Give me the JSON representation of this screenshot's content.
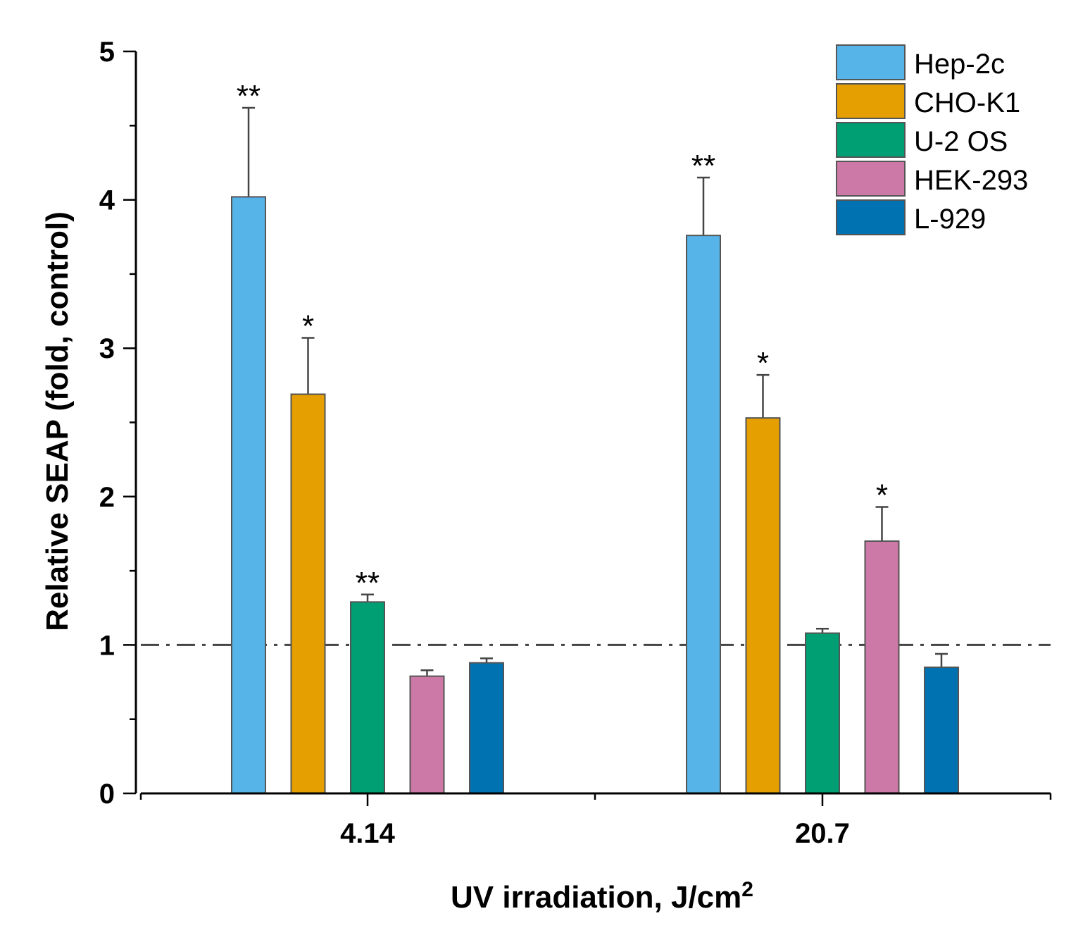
{
  "chart_data": {
    "type": "bar",
    "title": "",
    "xlabel": "UV irradiation, J/cm",
    "xlabel_superscript": "2",
    "ylabel": "Relative SEAP (fold, control)",
    "ylim": [
      0,
      5
    ],
    "yticks": [
      "0",
      "1",
      "2",
      "3",
      "4",
      "5"
    ],
    "categories": [
      "4.14",
      "20.7"
    ],
    "reference_line": 1,
    "legend_position": "top-right",
    "series": [
      {
        "name": "Hep-2c",
        "color": "#56B4E9",
        "values": [
          4.02,
          3.76
        ],
        "errors": [
          0.6,
          0.39
        ],
        "significance": [
          "**",
          "**"
        ]
      },
      {
        "name": "CHO-K1",
        "color": "#E69F00",
        "values": [
          2.69,
          2.53
        ],
        "errors": [
          0.38,
          0.29
        ],
        "significance": [
          "*",
          "*"
        ]
      },
      {
        "name": "U-2 OS",
        "color": "#009E73",
        "values": [
          1.29,
          1.08
        ],
        "errors": [
          0.05,
          0.03
        ],
        "significance": [
          "**",
          ""
        ]
      },
      {
        "name": "HEK-293",
        "color": "#CC79A7",
        "values": [
          0.79,
          1.7
        ],
        "errors": [
          0.04,
          0.23
        ],
        "significance": [
          "",
          "*"
        ]
      },
      {
        "name": "L-929",
        "color": "#0072B2",
        "values": [
          0.88,
          0.85
        ],
        "errors": [
          0.03,
          0.09
        ],
        "significance": [
          "",
          ""
        ]
      }
    ]
  }
}
